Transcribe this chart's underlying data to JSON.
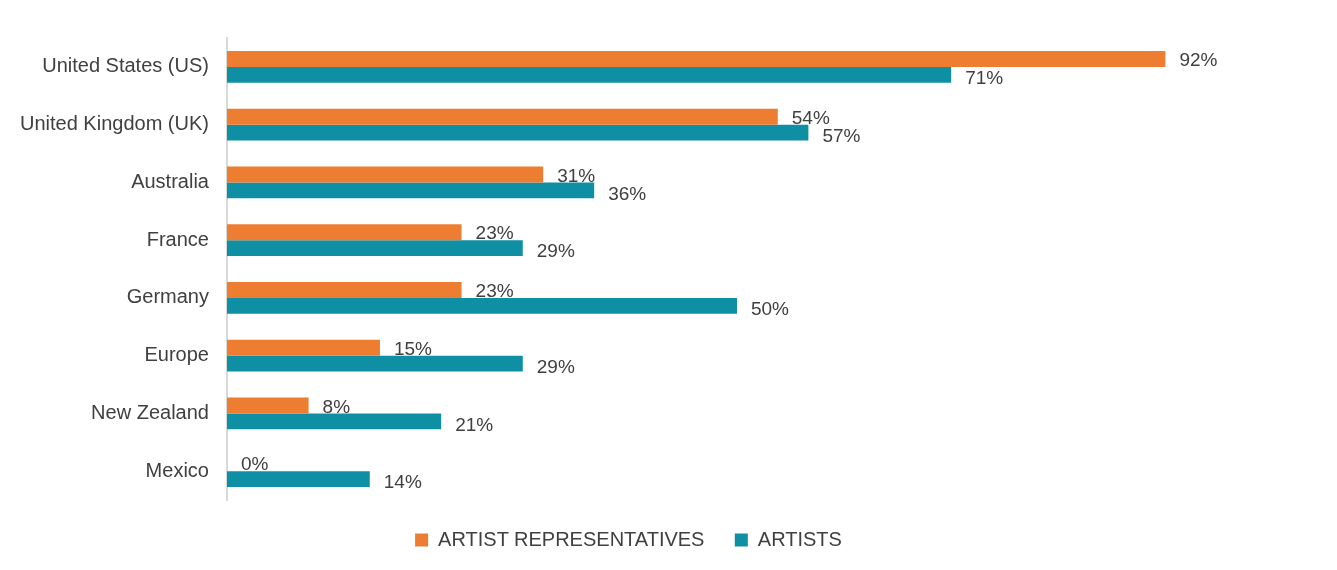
{
  "chart_data": {
    "type": "bar",
    "orientation": "horizontal",
    "categories": [
      "United States (US)",
      "United Kingdom (UK)",
      "Australia",
      "France",
      "Germany",
      "Europe",
      "New Zealand",
      "Mexico"
    ],
    "series": [
      {
        "name": "ARTIST REPRESENTATIVES",
        "color": "#ed7d31",
        "values": [
          92,
          54,
          31,
          23,
          23,
          15,
          8,
          0
        ],
        "value_labels": [
          "92%",
          "54%",
          "31%",
          "23%",
          "23%",
          "15%",
          "8%",
          "0%"
        ]
      },
      {
        "name": "ARTISTS",
        "color": "#0e8fa3",
        "values": [
          71,
          57,
          36,
          29,
          50,
          29,
          21,
          14
        ],
        "value_labels": [
          "71%",
          "57%",
          "36%",
          "29%",
          "50%",
          "29%",
          "21%",
          "14%"
        ]
      }
    ],
    "legend": "bottom"
  }
}
